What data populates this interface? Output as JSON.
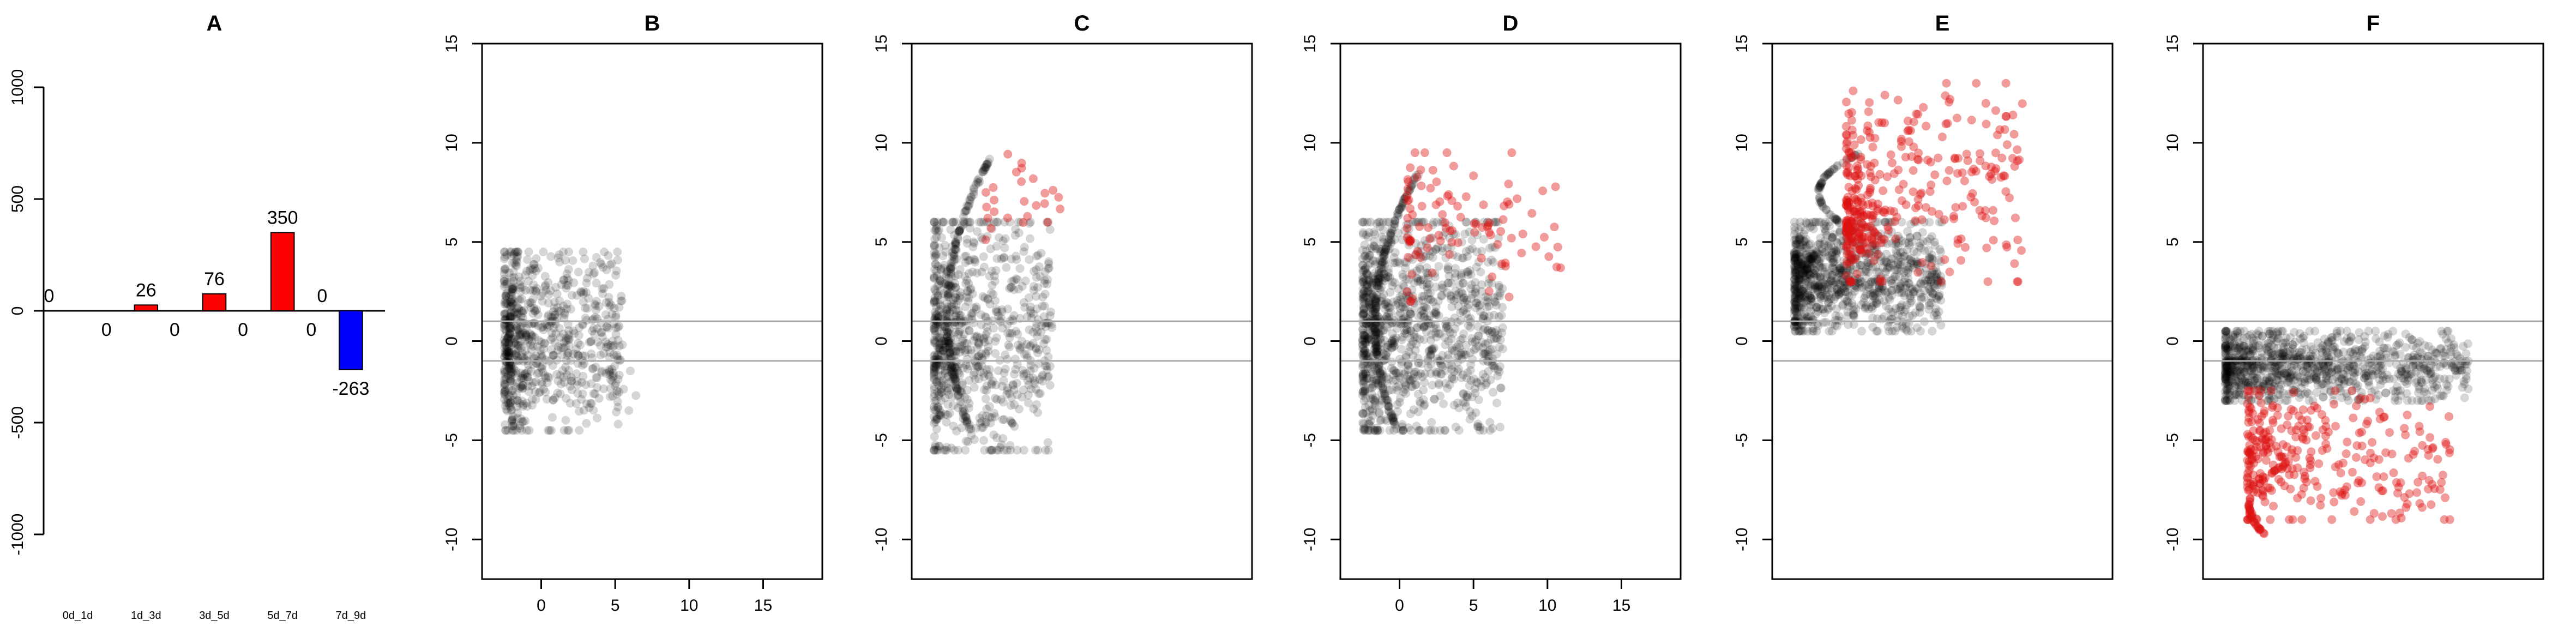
{
  "colors": {
    "background": "#ffffff",
    "up": "#ff0000",
    "down": "#0000ff",
    "point": "#000000",
    "point_highlight": "#dd1111",
    "threshold_line": "#aaaaaa"
  },
  "chart_data": [
    {
      "panel": "A",
      "type": "bar",
      "title": "A",
      "xlabel": "",
      "ylabel": "",
      "categories": [
        "0d_1d",
        "1d_3d",
        "3d_5d",
        "5d_7d",
        "7d_9d"
      ],
      "series": [
        {
          "values": [
            0,
            26,
            76,
            350,
            0
          ],
          "color": "#ff0000"
        },
        {
          "values": [
            0,
            0,
            0,
            0,
            -263
          ],
          "color": "#0000ff"
        }
      ],
      "bar_labels_above": [
        "0",
        "26",
        "76",
        "350",
        "0"
      ],
      "bar_labels_below": [
        "0",
        "0",
        "0",
        "0",
        "-263"
      ],
      "ylim": [
        -1000,
        1000
      ],
      "yticks": [
        "-1000",
        "-500",
        "0",
        "500",
        "1000"
      ],
      "grid": false,
      "legend": "none"
    },
    {
      "panel": "B",
      "type": "scatter",
      "title": "B",
      "xlim": [
        -4,
        19
      ],
      "ylim": [
        -12,
        15
      ],
      "xticks": [
        "0",
        "5",
        "10",
        "15"
      ],
      "yticks": [
        "-10",
        "-5",
        "0",
        "5",
        "10",
        "15"
      ],
      "show_x_axis": true,
      "thresholds": [
        1,
        -1
      ],
      "clusters": [
        {
          "shape": "cloud",
          "x": [
            -2.5,
            5.5
          ],
          "y": [
            -4.5,
            4.5
          ],
          "count": 700,
          "color": "#000000"
        },
        {
          "shape": "arc",
          "x": [
            -2.3,
            -1.6
          ],
          "y": [
            -4.5,
            4.5
          ],
          "count": 80,
          "color": "#000000"
        },
        {
          "shape": "cloud",
          "x": [
            5,
            6.5
          ],
          "y": [
            -3.5,
            1
          ],
          "count": 8,
          "color": "#000000"
        }
      ]
    },
    {
      "panel": "C",
      "type": "scatter",
      "title": "C",
      "xlim": [
        -4,
        19
      ],
      "ylim": [
        -12,
        15
      ],
      "xticks": [
        "0",
        "5",
        "10",
        "15"
      ],
      "yticks": [
        "-10",
        "-5",
        "0",
        "5",
        "10",
        "15"
      ],
      "show_x_axis": false,
      "thresholds": [
        1,
        -1
      ],
      "clusters": [
        {
          "shape": "cloud",
          "x": [
            -2.5,
            5.5
          ],
          "y": [
            -5.5,
            6
          ],
          "count": 800,
          "color": "#000000"
        },
        {
          "shape": "arc",
          "x": [
            -2.3,
            1.5
          ],
          "y": [
            -4.5,
            9.5
          ],
          "count": 160,
          "color": "#000000"
        },
        {
          "shape": "cloud",
          "x": [
            1,
            7
          ],
          "y": [
            4.5,
            9.5
          ],
          "count": 25,
          "color": "#dd1111"
        }
      ]
    },
    {
      "panel": "D",
      "type": "scatter",
      "title": "D",
      "xlim": [
        -4,
        19
      ],
      "ylim": [
        -12,
        15
      ],
      "xticks": [
        "0",
        "5",
        "10",
        "15"
      ],
      "yticks": [
        "-10",
        "-5",
        "0",
        "5",
        "10",
        "15"
      ],
      "show_x_axis": true,
      "thresholds": [
        1,
        -1
      ],
      "clusters": [
        {
          "shape": "cloud",
          "x": [
            -2.5,
            7
          ],
          "y": [
            -4.5,
            6
          ],
          "count": 1100,
          "color": "#000000"
        },
        {
          "shape": "arc",
          "x": [
            -2.3,
            1.3
          ],
          "y": [
            -4.5,
            8.5
          ],
          "count": 160,
          "color": "#000000"
        },
        {
          "shape": "cloud",
          "x": [
            0.5,
            11
          ],
          "y": [
            2,
            9.5
          ],
          "count": 100,
          "color": "#dd1111"
        }
      ]
    },
    {
      "panel": "E",
      "type": "scatter",
      "title": "E",
      "xlim": [
        -4,
        19
      ],
      "ylim": [
        -12,
        15
      ],
      "xticks": [
        "0",
        "5",
        "10",
        "15"
      ],
      "yticks": [
        "-10",
        "-5",
        "0",
        "5",
        "10",
        "15"
      ],
      "show_x_axis": false,
      "thresholds": [
        1,
        -1
      ],
      "clusters": [
        {
          "shape": "cloud",
          "x": [
            -2.5,
            7.5
          ],
          "y": [
            0.5,
            6
          ],
          "count": 1000,
          "color": "#000000"
        },
        {
          "shape": "arc",
          "x": [
            -1.5,
            2
          ],
          "y": [
            6,
            9.5
          ],
          "count": 60,
          "color": "#000000"
        },
        {
          "shape": "cloud",
          "x": [
            1,
            13
          ],
          "y": [
            3,
            13
          ],
          "count": 280,
          "color": "#dd1111"
        },
        {
          "shape": "cloud",
          "x": [
            1,
            3
          ],
          "y": [
            4,
            7
          ],
          "count": 80,
          "color": "#dd1111"
        }
      ]
    },
    {
      "panel": "F",
      "type": "scatter",
      "title": "F",
      "xlim": [
        -4,
        19
      ],
      "ylim": [
        -12,
        15
      ],
      "xticks": [],
      "yticks": [
        "-10",
        "-5",
        "0",
        "5",
        "10",
        "15"
      ],
      "show_x_axis": false,
      "thresholds": [
        1,
        -1
      ],
      "clusters": [
        {
          "shape": "cloud",
          "x": [
            -2.5,
            14
          ],
          "y": [
            -3,
            0.5
          ],
          "count": 1000,
          "color": "#000000"
        },
        {
          "shape": "arc",
          "x": [
            -1.5,
            2
          ],
          "y": [
            -10,
            -6
          ],
          "count": 45,
          "color": "#dd1111"
        },
        {
          "shape": "cloud",
          "x": [
            -1,
            13
          ],
          "y": [
            -9,
            -2.5
          ],
          "count": 300,
          "color": "#dd1111"
        }
      ]
    }
  ]
}
